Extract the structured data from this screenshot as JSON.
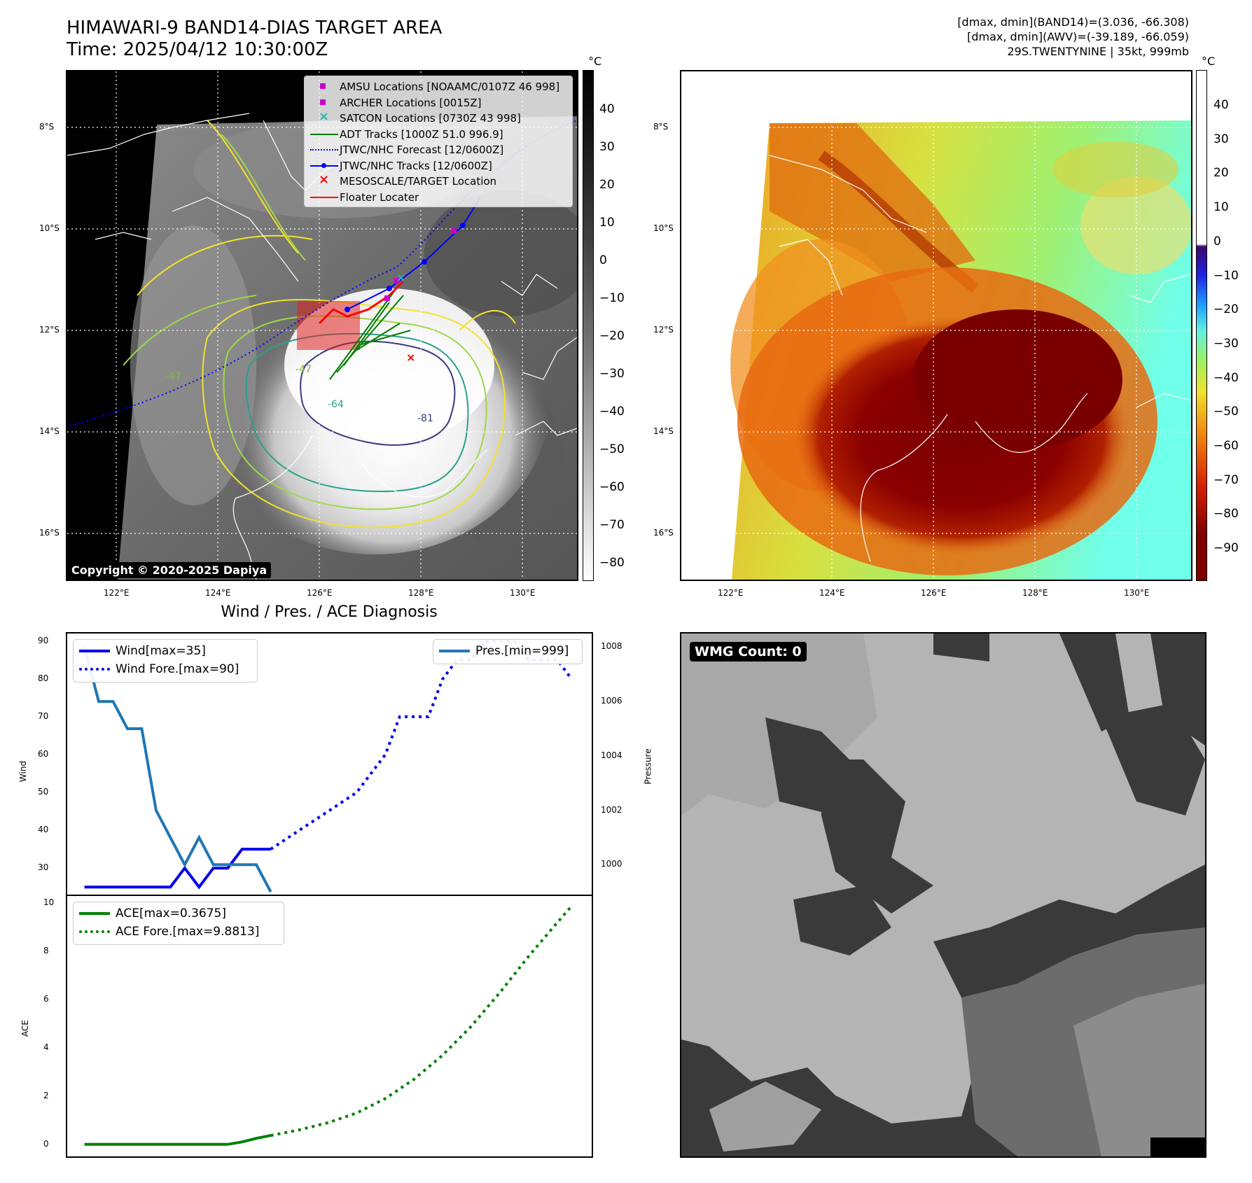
{
  "header": {
    "title_line1": "HIMAWARI-9 BAND14-DIAS TARGET AREA",
    "title_line2": "Time: 2025/04/12 10:30:00Z",
    "info_line1": "[dmax, dmin](BAND14)=(3.036, -66.308)",
    "info_line2": "[dmax, dmin](AWV)=(-39.189, -66.059)",
    "info_line3": "29S.TWENTYNINE | 35kt, 999mb"
  },
  "map": {
    "lat_labels": [
      "8°S",
      "10°S",
      "12°S",
      "14°S",
      "16°S"
    ],
    "lon_labels": [
      "122°E",
      "124°E",
      "126°E",
      "128°E",
      "130°E"
    ],
    "copyright": "Copyright © 2020-2025 Dapiya",
    "contour_labels": [
      "-81",
      "-64",
      "-47",
      "-47"
    ],
    "legend": [
      {
        "label": "AMSU Locations [NOAAMC/0107Z 46 998]",
        "color": "#cc00cc",
        "style": "square"
      },
      {
        "label": "ARCHER Locations [0015Z]",
        "color": "#cc00cc",
        "style": "square"
      },
      {
        "label": "SATCON Locations [0730Z 43 998]",
        "color": "#22bbbb",
        "style": "x"
      },
      {
        "label": "ADT Tracks [1000Z 51.0 996.9]",
        "color": "#008000",
        "style": "line"
      },
      {
        "label": "JTWC/NHC Forecast [12/0600Z]",
        "color": "#0000ff",
        "style": "dotted"
      },
      {
        "label": "JTWC/NHC Tracks [12/0600Z]",
        "color": "#0000ff",
        "style": "line-dot"
      },
      {
        "label": "MESOSCALE/TARGET Location",
        "color": "#ff0000",
        "style": "x"
      },
      {
        "label": "Floater Locater",
        "color": "#ff0000",
        "style": "line"
      }
    ]
  },
  "colorbar_gray": {
    "unit": "°C",
    "ticks": [
      "40",
      "30",
      "20",
      "10",
      "0",
      "−10",
      "−20",
      "−30",
      "−40",
      "−50",
      "−60",
      "−70",
      "−80"
    ]
  },
  "colorbar_awv": {
    "unit": "°C",
    "ticks": [
      "40",
      "30",
      "20",
      "10",
      "0",
      "−10",
      "−20",
      "−30",
      "−40",
      "−50",
      "−60",
      "−70",
      "−80",
      "−90"
    ]
  },
  "diagnosis": {
    "title": "Wind / Pres. / ACE Diagnosis",
    "wind_ylabel": "Wind",
    "pres_ylabel": "Pressure",
    "ace_ylabel": "ACE",
    "wind_legend": [
      "Wind[max=35]",
      "Wind Fore.[max=90]"
    ],
    "pres_legend": [
      "Pres.[min=999]"
    ],
    "ace_legend": [
      "ACE[max=0.3675]",
      "ACE Fore.[max=9.8813]"
    ],
    "colors": {
      "wind": "#0000ee",
      "pres": "#1f77b4",
      "ace": "#008000"
    }
  },
  "wmg": {
    "label": "WMG Count: 0"
  },
  "chart_data": [
    {
      "type": "line",
      "name": "wind",
      "x": [
        0,
        1,
        2,
        3,
        4,
        5,
        6,
        7,
        8,
        9,
        10,
        11,
        12,
        13
      ],
      "series": [
        {
          "name": "Wind[max=35]",
          "values": [
            25,
            25,
            25,
            25,
            25,
            25,
            25,
            30,
            25,
            30,
            30,
            35,
            35,
            35
          ]
        },
        {
          "name": "Wind Fore.[max=90]",
          "x": [
            13,
            14,
            15,
            16,
            17,
            18,
            19,
            20,
            21,
            22,
            23,
            24,
            25,
            26,
            27,
            28,
            29,
            30,
            31,
            32,
            33,
            34
          ],
          "values": [
            35,
            37.5,
            40,
            42.5,
            45,
            47.5,
            50,
            55,
            60,
            70,
            70,
            70,
            80,
            85,
            85,
            90,
            90,
            90,
            85,
            85,
            85,
            80
          ]
        }
      ],
      "ylim": [
        23,
        92
      ],
      "yticks": [
        30,
        40,
        50,
        60,
        70,
        80,
        90
      ]
    },
    {
      "type": "line",
      "name": "pressure",
      "series": [
        {
          "name": "Pres.[min=999]",
          "x": [
            0,
            1,
            2,
            3,
            4,
            5,
            6,
            7,
            8,
            9,
            10,
            11,
            12,
            13
          ],
          "values": [
            1008,
            1006,
            1006,
            1005,
            1005,
            1002,
            1001,
            1000,
            1001,
            1000,
            1000,
            1000,
            1000,
            999
          ]
        }
      ],
      "ylim": [
        998.9,
        1008.5
      ],
      "yticks": [
        1000,
        1002,
        1004,
        1006,
        1008
      ]
    },
    {
      "type": "line",
      "name": "ace",
      "series": [
        {
          "name": "ACE[max=0.3675]",
          "x": [
            0,
            3.5,
            6,
            8,
            10,
            11,
            12,
            13
          ],
          "values": [
            0,
            0,
            0,
            0,
            0,
            0.1,
            0.25,
            0.3675
          ]
        },
        {
          "name": "ACE Fore.[max=9.8813]",
          "x": [
            13,
            15,
            17,
            19,
            21,
            23,
            25,
            27,
            29,
            31,
            33,
            34
          ],
          "values": [
            0.3675,
            0.6,
            0.9,
            1.3,
            1.9,
            2.7,
            3.7,
            4.9,
            6.3,
            7.8,
            9.2,
            9.8813
          ]
        }
      ],
      "ylim": [
        -0.5,
        10.3
      ],
      "yticks": [
        0,
        2,
        4,
        6,
        8,
        10
      ]
    }
  ]
}
